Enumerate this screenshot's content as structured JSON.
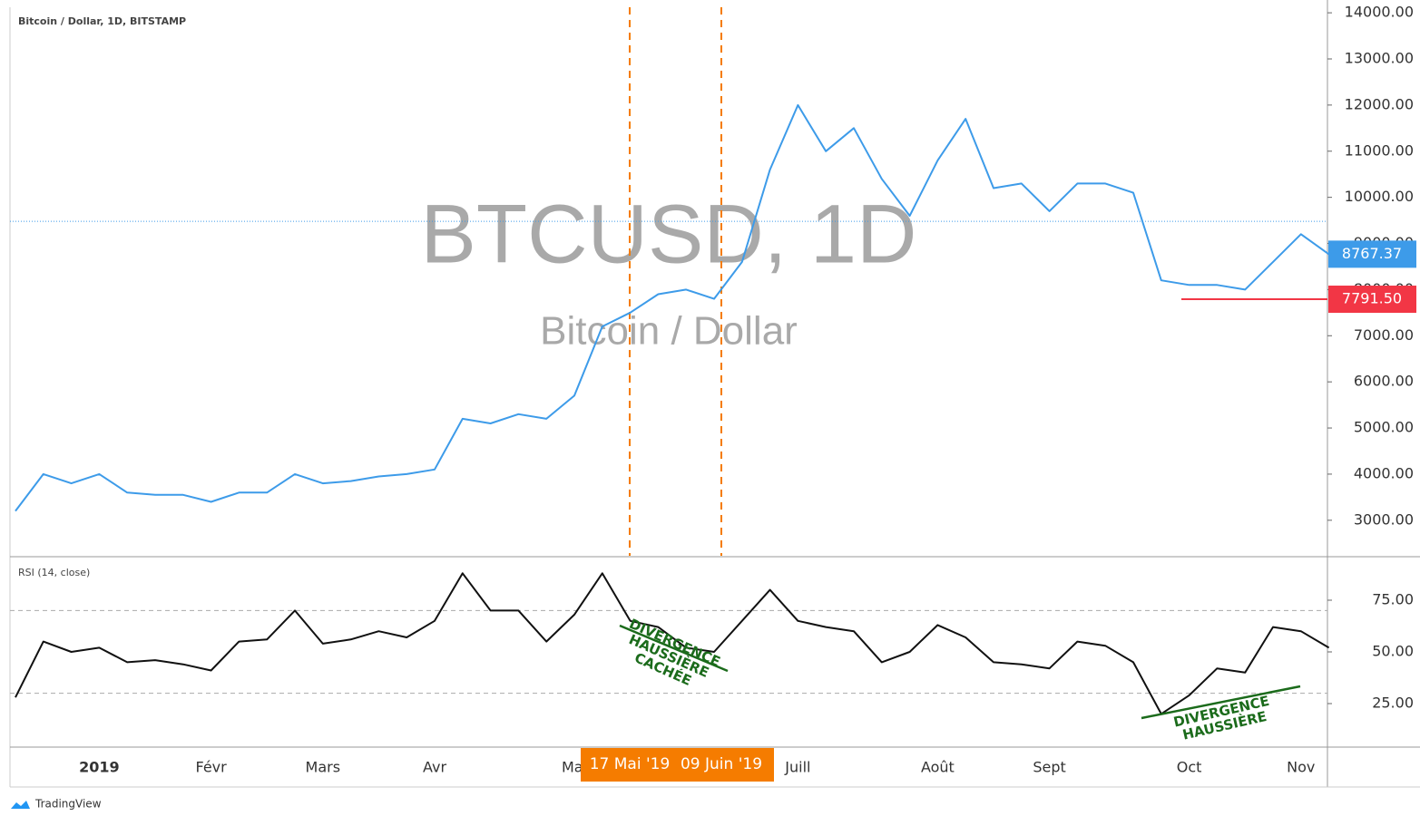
{
  "chart_data": [
    {
      "type": "line",
      "title": "Bitcoin / Dollar, 1D, BITSTAMP",
      "watermark": "BTCUSD, 1D",
      "subtitle": "Bitcoin / Dollar",
      "color": "#3d9be9",
      "categories": [
        null,
        null,
        null,
        "2019",
        null,
        null,
        null,
        "Févr",
        null,
        null,
        null,
        "Mars",
        null,
        null,
        null,
        "Avr",
        null,
        null,
        null,
        null,
        "Mai",
        null,
        null,
        null,
        null,
        null,
        null,
        null,
        "Juill",
        null,
        null,
        null,
        null,
        "Août",
        null,
        null,
        null,
        "Sept",
        null,
        null,
        null,
        null,
        "Oct",
        null,
        null,
        null,
        "Nov",
        null
      ],
      "values": [
        3200,
        4000,
        3800,
        4000,
        3600,
        3550,
        3550,
        3400,
        3600,
        3600,
        4000,
        3800,
        3850,
        3950,
        4000,
        4100,
        5200,
        5100,
        5300,
        5200,
        5700,
        7200,
        7500,
        7900,
        8000,
        7800,
        8600,
        10600,
        12000,
        11000,
        11500,
        10400,
        9600,
        10800,
        11700,
        10200,
        10300,
        9700,
        10300,
        10300,
        10100,
        8200,
        8100,
        8100,
        8000,
        8600,
        9200,
        8767.37
      ],
      "ylim": [
        2230,
        14120
      ],
      "yticks": [
        {
          "value": 3000,
          "label": "3000.00"
        },
        {
          "value": 4000,
          "label": "4000.00"
        },
        {
          "value": 5000,
          "label": "5000.00"
        },
        {
          "value": 6000,
          "label": "6000.00"
        },
        {
          "value": 7000,
          "label": "7000.00"
        },
        {
          "value": 8000,
          "label": "8000.00"
        },
        {
          "value": 9000,
          "label": "9000.00"
        },
        {
          "value": 10000,
          "label": "10000.00"
        },
        {
          "value": 11000,
          "label": "11000.00"
        },
        {
          "value": 12000,
          "label": "12000.00"
        },
        {
          "value": 13000,
          "label": "13000.00"
        },
        {
          "value": 14000,
          "label": "14000.00"
        }
      ],
      "last_price": 8767.37,
      "level": {
        "value": 7791.5,
        "label": "7791.50",
        "color": "#f23645"
      },
      "reference_line": 9480,
      "markers": [
        "17 Mai '19",
        "09 Juin '19"
      ],
      "marker_color": "#f57c00"
    },
    {
      "type": "line",
      "title": "RSI (14, close)",
      "color": "#111111",
      "values": [
        28,
        55,
        50,
        52,
        45,
        46,
        44,
        41,
        55,
        56,
        70,
        54,
        56,
        60,
        57,
        65,
        88,
        70,
        70,
        55,
        68,
        88,
        65,
        62,
        52,
        50,
        65,
        80,
        65,
        62,
        60,
        45,
        50,
        63,
        57,
        45,
        44,
        42,
        55,
        53,
        45,
        20,
        29,
        42,
        40,
        62,
        60,
        52
      ],
      "ylim": [
        4.4,
        95.6
      ],
      "yticks": [
        {
          "value": 25,
          "label": "25.00"
        },
        {
          "value": 50,
          "label": "50.00"
        },
        {
          "value": 75,
          "label": "75.00"
        }
      ],
      "bands": [
        30,
        70
      ],
      "annotations": [
        {
          "lines": [
            "DIVERGENCE",
            "HAUSSIÈRE",
            "CACHÉE"
          ]
        },
        {
          "lines": [
            "DIVERGENCE",
            "HAUSSIÈRE"
          ]
        }
      ],
      "annotation_color": "#1b6b1b"
    }
  ],
  "footer": {
    "brand": "TradingView"
  }
}
